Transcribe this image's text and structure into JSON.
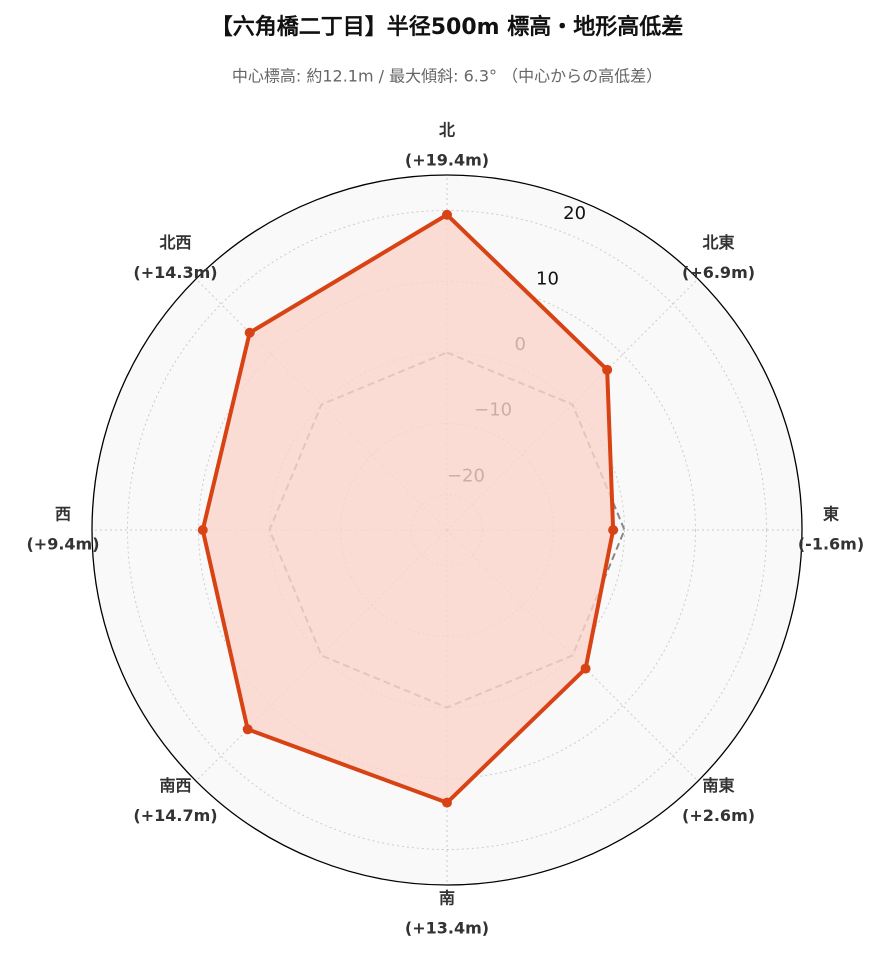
{
  "chart_data": {
    "type": "radar",
    "title": "【六角橋二丁目】半径500m 標高・地形高低差",
    "subtitle": "中心標高: 約12.1m / 最大傾斜: 6.3° （中心からの高低差）",
    "categories": [
      "北",
      "北東",
      "東",
      "南東",
      "南",
      "南西",
      "西",
      "北西"
    ],
    "values": [
      19.4,
      6.9,
      -1.6,
      2.6,
      13.4,
      14.7,
      9.4,
      14.3
    ],
    "value_labels": [
      "(+19.4m)",
      "(+6.9m)",
      "(-1.6m)",
      "(+2.6m)",
      "(+13.4m)",
      "(+14.7m)",
      "(+9.4m)",
      "(+14.3m)"
    ],
    "color": "#d84315",
    "fill_color": "#fbd5cb",
    "reference_value": 0,
    "ylim": [
      -25,
      25
    ],
    "yticks": [
      {
        "value": -20,
        "label": "−20"
      },
      {
        "value": -10,
        "label": "−10"
      },
      0,
      10,
      20
    ],
    "grid": true
  }
}
